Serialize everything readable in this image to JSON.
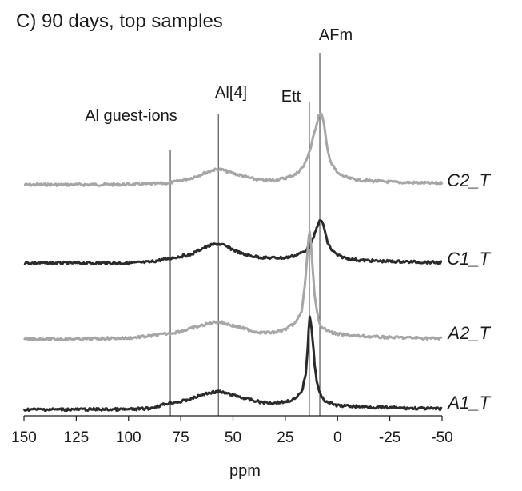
{
  "chart_data": {
    "type": "line",
    "title": "C) 90 days, top samples",
    "xlabel": "ppm",
    "ylabel": "",
    "xlim": [
      150,
      -50
    ],
    "x_reversed": true,
    "y_offset_stacked": true,
    "grid": false,
    "xticks": [
      150,
      125,
      100,
      75,
      50,
      25,
      0,
      -25,
      -50
    ],
    "xtick_labels": [
      "150",
      "125",
      "100",
      "75",
      "50",
      "25",
      "0",
      "-25",
      "-50"
    ],
    "reference_lines": [
      {
        "label": "Al guest-ions",
        "x": 80
      },
      {
        "label": "Al[4]",
        "x": 57
      },
      {
        "label": "Ett",
        "x": 13.5
      },
      {
        "label": "AFm",
        "x": 8.5
      }
    ],
    "series": [
      {
        "name": "C2_T",
        "color": "#a6a6a6",
        "baseline": 0,
        "points": [
          [
            150,
            0
          ],
          [
            125,
            0.3
          ],
          [
            100,
            0.6
          ],
          [
            90,
            1.5
          ],
          [
            80,
            4
          ],
          [
            70,
            14
          ],
          [
            65,
            22
          ],
          [
            60,
            30
          ],
          [
            57,
            32
          ],
          [
            55,
            31
          ],
          [
            50,
            24
          ],
          [
            45,
            18
          ],
          [
            40,
            12
          ],
          [
            35,
            9
          ],
          [
            30,
            10
          ],
          [
            25,
            14
          ],
          [
            20,
            22
          ],
          [
            16,
            40
          ],
          [
            13,
            75
          ],
          [
            11,
            110
          ],
          [
            9,
            145
          ],
          [
            8,
            148
          ],
          [
            7,
            140
          ],
          [
            6,
            110
          ],
          [
            5,
            75
          ],
          [
            3,
            45
          ],
          [
            0,
            24
          ],
          [
            -5,
            14
          ],
          [
            -10,
            10
          ],
          [
            -20,
            7
          ],
          [
            -30,
            5
          ],
          [
            -40,
            4
          ],
          [
            -50,
            3
          ]
        ]
      },
      {
        "name": "C1_T",
        "color": "#2b2b2b",
        "baseline": 0,
        "points": [
          [
            150,
            0
          ],
          [
            125,
            0
          ],
          [
            100,
            0
          ],
          [
            90,
            2
          ],
          [
            80,
            10
          ],
          [
            75,
            14
          ],
          [
            70,
            18
          ],
          [
            65,
            30
          ],
          [
            60,
            38
          ],
          [
            57,
            40
          ],
          [
            55,
            38
          ],
          [
            50,
            28
          ],
          [
            45,
            18
          ],
          [
            40,
            14
          ],
          [
            35,
            11
          ],
          [
            30,
            11
          ],
          [
            25,
            11
          ],
          [
            20,
            16
          ],
          [
            16,
            24
          ],
          [
            13,
            36
          ],
          [
            11,
            60
          ],
          [
            9,
            86
          ],
          [
            8,
            88
          ],
          [
            7,
            84
          ],
          [
            6,
            65
          ],
          [
            5,
            45
          ],
          [
            3,
            28
          ],
          [
            0,
            16
          ],
          [
            -5,
            9
          ],
          [
            -10,
            6
          ],
          [
            -20,
            4
          ],
          [
            -30,
            3
          ],
          [
            -40,
            2
          ],
          [
            -50,
            1
          ]
        ]
      },
      {
        "name": "A2_T",
        "color": "#a6a6a6",
        "baseline": 0,
        "points": [
          [
            150,
            0
          ],
          [
            125,
            0
          ],
          [
            100,
            2
          ],
          [
            90,
            6
          ],
          [
            80,
            12
          ],
          [
            75,
            16
          ],
          [
            70,
            22
          ],
          [
            65,
            28
          ],
          [
            60,
            34
          ],
          [
            57,
            36
          ],
          [
            55,
            34
          ],
          [
            50,
            28
          ],
          [
            45,
            22
          ],
          [
            40,
            16
          ],
          [
            35,
            13
          ],
          [
            30,
            14
          ],
          [
            25,
            20
          ],
          [
            20,
            34
          ],
          [
            17,
            60
          ],
          [
            15,
            140
          ],
          [
            14,
            210
          ],
          [
            13.5,
            225
          ],
          [
            13,
            215
          ],
          [
            12,
            150
          ],
          [
            11,
            90
          ],
          [
            10,
            60
          ],
          [
            9,
            40
          ],
          [
            8,
            28
          ],
          [
            6,
            20
          ],
          [
            3,
            14
          ],
          [
            0,
            10
          ],
          [
            -10,
            6
          ],
          [
            -20,
            4
          ],
          [
            -30,
            3
          ],
          [
            -40,
            2
          ],
          [
            -50,
            1
          ]
        ]
      },
      {
        "name": "A1_T",
        "color": "#2b2b2b",
        "baseline": 0,
        "points": [
          [
            150,
            0
          ],
          [
            125,
            0
          ],
          [
            100,
            0
          ],
          [
            90,
            2
          ],
          [
            80,
            14
          ],
          [
            75,
            16
          ],
          [
            70,
            22
          ],
          [
            65,
            30
          ],
          [
            60,
            36
          ],
          [
            57,
            37
          ],
          [
            55,
            35
          ],
          [
            50,
            30
          ],
          [
            45,
            24
          ],
          [
            40,
            18
          ],
          [
            35,
            14
          ],
          [
            30,
            14
          ],
          [
            25,
            16
          ],
          [
            20,
            22
          ],
          [
            17,
            38
          ],
          [
            15,
            80
          ],
          [
            14,
            150
          ],
          [
            13.5,
            196
          ],
          [
            13,
            192
          ],
          [
            12,
            150
          ],
          [
            11,
            95
          ],
          [
            10,
            60
          ],
          [
            9,
            40
          ],
          [
            8,
            28
          ],
          [
            6,
            18
          ],
          [
            3,
            12
          ],
          [
            0,
            8
          ],
          [
            -10,
            6
          ],
          [
            -20,
            4
          ],
          [
            -30,
            3
          ],
          [
            -40,
            2
          ],
          [
            -50,
            1
          ]
        ]
      }
    ]
  }
}
